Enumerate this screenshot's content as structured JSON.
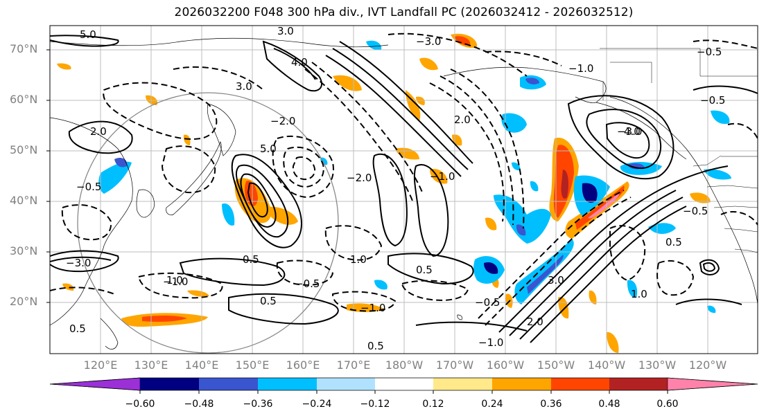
{
  "title": "2026032200 F048 300 hPa div., IVT Landfall PC (2026032412 - 2026032512)",
  "lat_labels": [
    "70°N",
    "60°N",
    "50°N",
    "40°N",
    "30°N",
    "20°N"
  ],
  "lon_labels": [
    "120°E",
    "130°E",
    "140°E",
    "150°E",
    "160°E",
    "170°E",
    "180°W",
    "170°W",
    "160°W",
    "150°W",
    "140°W",
    "130°W",
    "120°W"
  ],
  "colorbar": {
    "colors": [
      "#9b30d8",
      "#000080",
      "#3a55d0",
      "#00bfff",
      "#b0e2ff",
      "#ffffff",
      "#ffe98a",
      "#ffa500",
      "#ff4500",
      "#b22222",
      "#ff82ab"
    ],
    "ticks": [
      "−0.60",
      "−0.48",
      "−0.36",
      "−0.24",
      "−0.12",
      "0.12",
      "0.24",
      "0.36",
      "0.48",
      "0.60"
    ]
  },
  "contour_labels": [
    "−3.0",
    "−2.0",
    "−1.0",
    "−0.5",
    "0.5",
    "1.0",
    "2.0",
    "3.0",
    "4.0",
    "5.0"
  ]
}
